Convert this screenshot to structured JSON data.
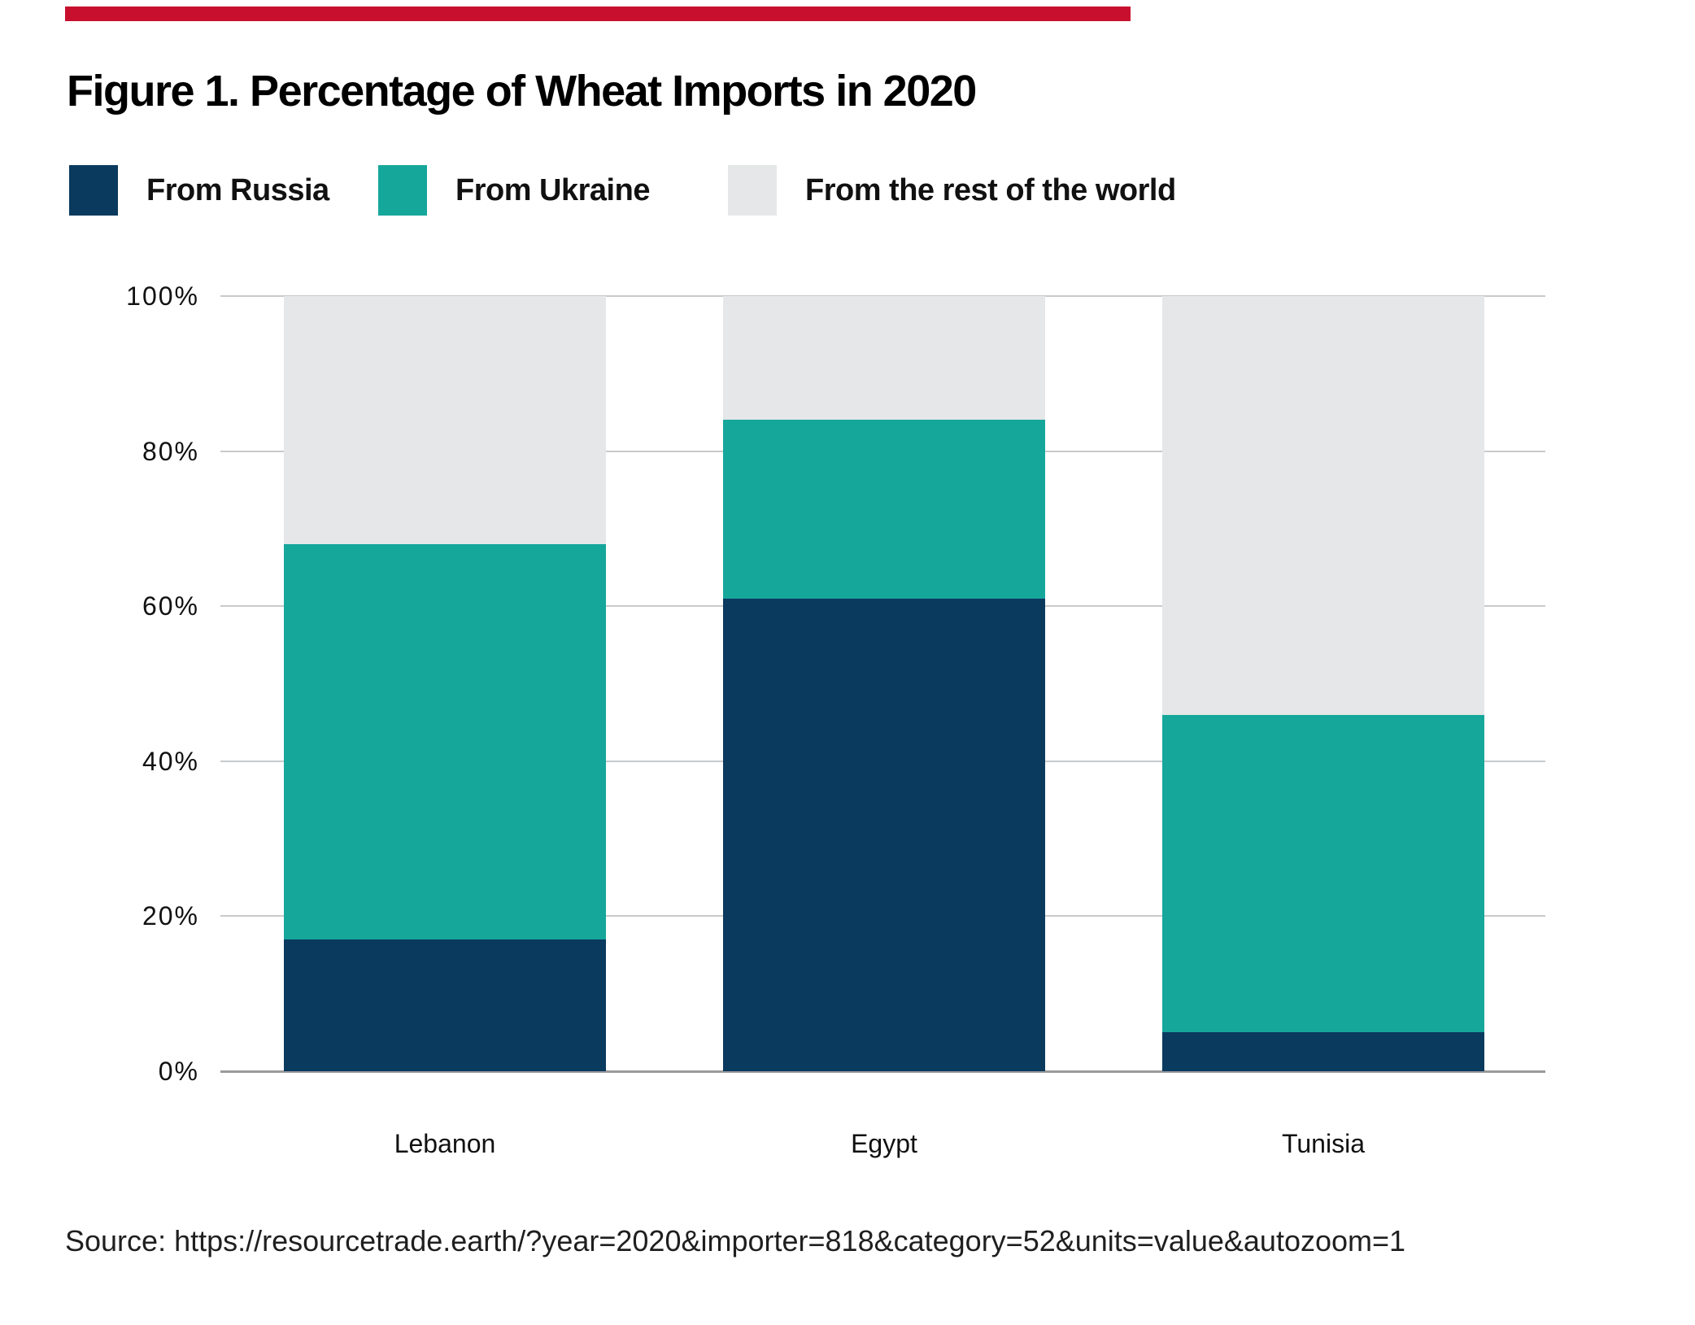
{
  "figure": {
    "title": "Figure 1. Percentage of Wheat Imports in 2020",
    "source": "Source: https://resourcetrade.earth/?year=2020&importer=818&category=52&units=value&autozoom=1",
    "accent_color": "#C8102E"
  },
  "chart_data": {
    "type": "bar",
    "stacked": true,
    "title": "Figure 1. Percentage of Wheat Imports in 2020",
    "categories": [
      "Lebanon",
      "Egypt",
      "Tunisia"
    ],
    "series": [
      {
        "name": "From Russia",
        "color": "#0A3A5E",
        "values": [
          17,
          61,
          5
        ]
      },
      {
        "name": "From Ukraine",
        "color": "#16A79B",
        "values": [
          51,
          23,
          41
        ]
      },
      {
        "name": "From the rest of the world",
        "color": "#E6E7E8",
        "values": [
          32,
          16,
          54
        ]
      }
    ],
    "xlabel": "",
    "ylabel": "",
    "ylim": [
      0,
      100
    ],
    "yticks_pct": [
      0,
      20,
      40,
      60,
      80,
      100
    ],
    "ytick_labels": [
      "0%",
      "20%",
      "40%",
      "60%",
      "80%",
      "100%"
    ],
    "grid": true,
    "legend_position": "top-left"
  }
}
